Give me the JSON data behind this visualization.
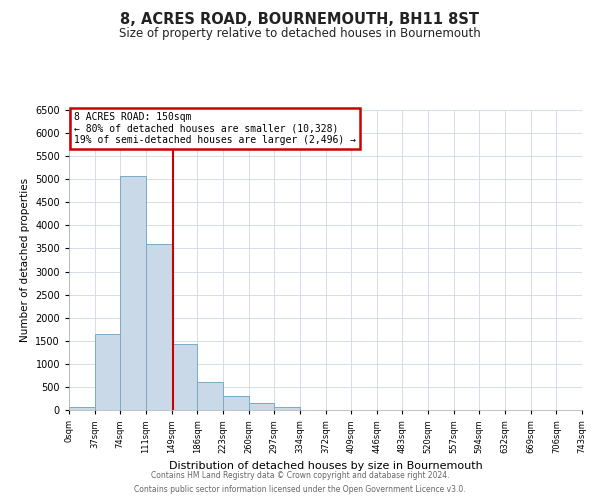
{
  "title": "8, ACRES ROAD, BOURNEMOUTH, BH11 8ST",
  "subtitle": "Size of property relative to detached houses in Bournemouth",
  "xlabel": "Distribution of detached houses by size in Bournemouth",
  "ylabel": "Number of detached properties",
  "bar_edges": [
    0,
    37,
    74,
    111,
    149,
    186,
    223,
    260,
    297,
    334,
    372,
    409,
    446,
    483,
    520,
    557,
    594,
    632,
    669,
    706,
    743
  ],
  "bar_heights": [
    75,
    1650,
    5080,
    3600,
    1420,
    615,
    300,
    145,
    60,
    10,
    5,
    0,
    0,
    0,
    0,
    0,
    0,
    0,
    0,
    0
  ],
  "bar_color": "#c9d9e8",
  "bar_edge_color": "#7aaac8",
  "property_line_x": 150,
  "property_line_color": "#cc0000",
  "ylim": [
    0,
    6500
  ],
  "yticks": [
    0,
    500,
    1000,
    1500,
    2000,
    2500,
    3000,
    3500,
    4000,
    4500,
    5000,
    5500,
    6000,
    6500
  ],
  "annotation_title": "8 ACRES ROAD: 150sqm",
  "annotation_line1": "← 80% of detached houses are smaller (10,328)",
  "annotation_line2": "19% of semi-detached houses are larger (2,496) →",
  "annotation_box_color": "#cc0000",
  "footer1": "Contains HM Land Registry data © Crown copyright and database right 2024.",
  "footer2": "Contains public sector information licensed under the Open Government Licence v3.0.",
  "bg_color": "#ffffff",
  "grid_color": "#d0d8e8",
  "tick_labels": [
    "0sqm",
    "37sqm",
    "74sqm",
    "111sqm",
    "149sqm",
    "186sqm",
    "223sqm",
    "260sqm",
    "297sqm",
    "334sqm",
    "372sqm",
    "409sqm",
    "446sqm",
    "483sqm",
    "520sqm",
    "557sqm",
    "594sqm",
    "632sqm",
    "669sqm",
    "706sqm",
    "743sqm"
  ]
}
